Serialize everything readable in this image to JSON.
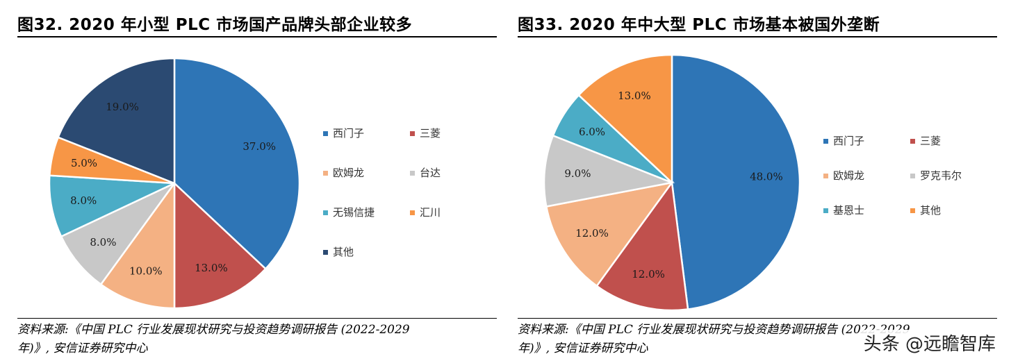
{
  "chart_data": [
    {
      "type": "pie",
      "title": "图32. 2020 年小型 PLC 市场国产品牌头部企业较多",
      "categories": [
        "西门子",
        "三菱",
        "欧姆龙",
        "台达",
        "无锡信捷",
        "汇川",
        "其他"
      ],
      "values": [
        37.0,
        13.0,
        10.0,
        8.0,
        8.0,
        5.0,
        19.0
      ],
      "data_labels": [
        "37.0%",
        "13.0%",
        "10.0%",
        "8.0%",
        "8.0%",
        "5.0%",
        "19.0%"
      ],
      "colors": [
        "#2E75B6",
        "#C0504D",
        "#F4B183",
        "#C8C8C8",
        "#4BACC6",
        "#F79646",
        "#2B4A72"
      ],
      "legend_text_colors": [
        "#333333",
        "#333333",
        "#333333",
        "#E03030",
        "#E03030",
        "#E03030",
        "#333333"
      ],
      "legend": "right",
      "source": [
        "资料来源:《中国 PLC 行业发展现状研究与投资趋势调研报告 (2022-2029",
        "年)》, 安信证券研究中心"
      ]
    },
    {
      "type": "pie",
      "title": "图33. 2020 年中大型 PLC 市场基本被国外垄断",
      "categories": [
        "西门子",
        "三菱",
        "欧姆龙",
        "罗克韦尔",
        "基恩士",
        "其他"
      ],
      "values": [
        48.0,
        12.0,
        12.0,
        9.0,
        6.0,
        13.0
      ],
      "data_labels": [
        "48.0%",
        "12.0%",
        "12.0%",
        "9.0%",
        "6.0%",
        "13.0%"
      ],
      "colors": [
        "#2E75B6",
        "#C0504D",
        "#F4B183",
        "#C8C8C8",
        "#4BACC6",
        "#F79646"
      ],
      "legend_text_colors": [
        "#333333",
        "#333333",
        "#333333",
        "#333333",
        "#333333",
        "#333333"
      ],
      "legend": "right",
      "source": [
        "资料来源:《中国 PLC 行业发展现状研究与投资趋势调研报告 (2022-2029",
        "年)》, 安信证券研究中心"
      ]
    }
  ],
  "watermark": "头条 @远瞻智库"
}
